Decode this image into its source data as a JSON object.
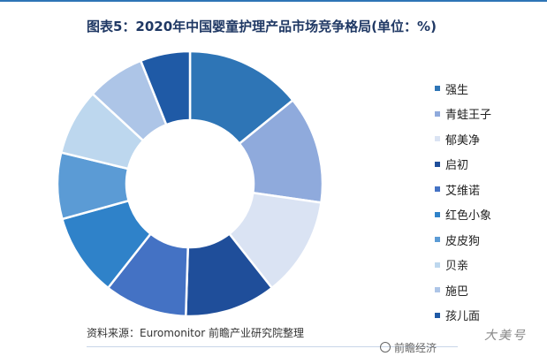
{
  "title": "图表5：2020年中国婴童护理产品市场竞争格局(单位：%)",
  "source": "资料来源：Euromonitor 前瞻产业研究院整理",
  "watermark": "前瞻经济",
  "corner_mark": "大美号",
  "chart_data": {
    "type": "pie",
    "donut": true,
    "title": "图表5：2020年中国婴童护理产品市场竞争格局(单位：%)",
    "labels": [
      "强生",
      "青蛙王子",
      "郁美净",
      "启初",
      "艾维诺",
      "红色小象",
      "皮皮狗",
      "贝亲",
      "施巴",
      "孩儿面"
    ],
    "values": [
      14,
      13,
      12,
      11,
      10,
      10,
      8,
      8,
      7,
      6
    ],
    "colors": [
      "#2e75b6",
      "#8faadc",
      "#dae3f3",
      "#1f4e9a",
      "#4472c4",
      "#2f82c9",
      "#5b9bd5",
      "#bdd7ee",
      "#adc5e7",
      "#1f5aa6"
    ],
    "legend": "right",
    "start_angle_deg": 0,
    "direction": "clockwise"
  }
}
